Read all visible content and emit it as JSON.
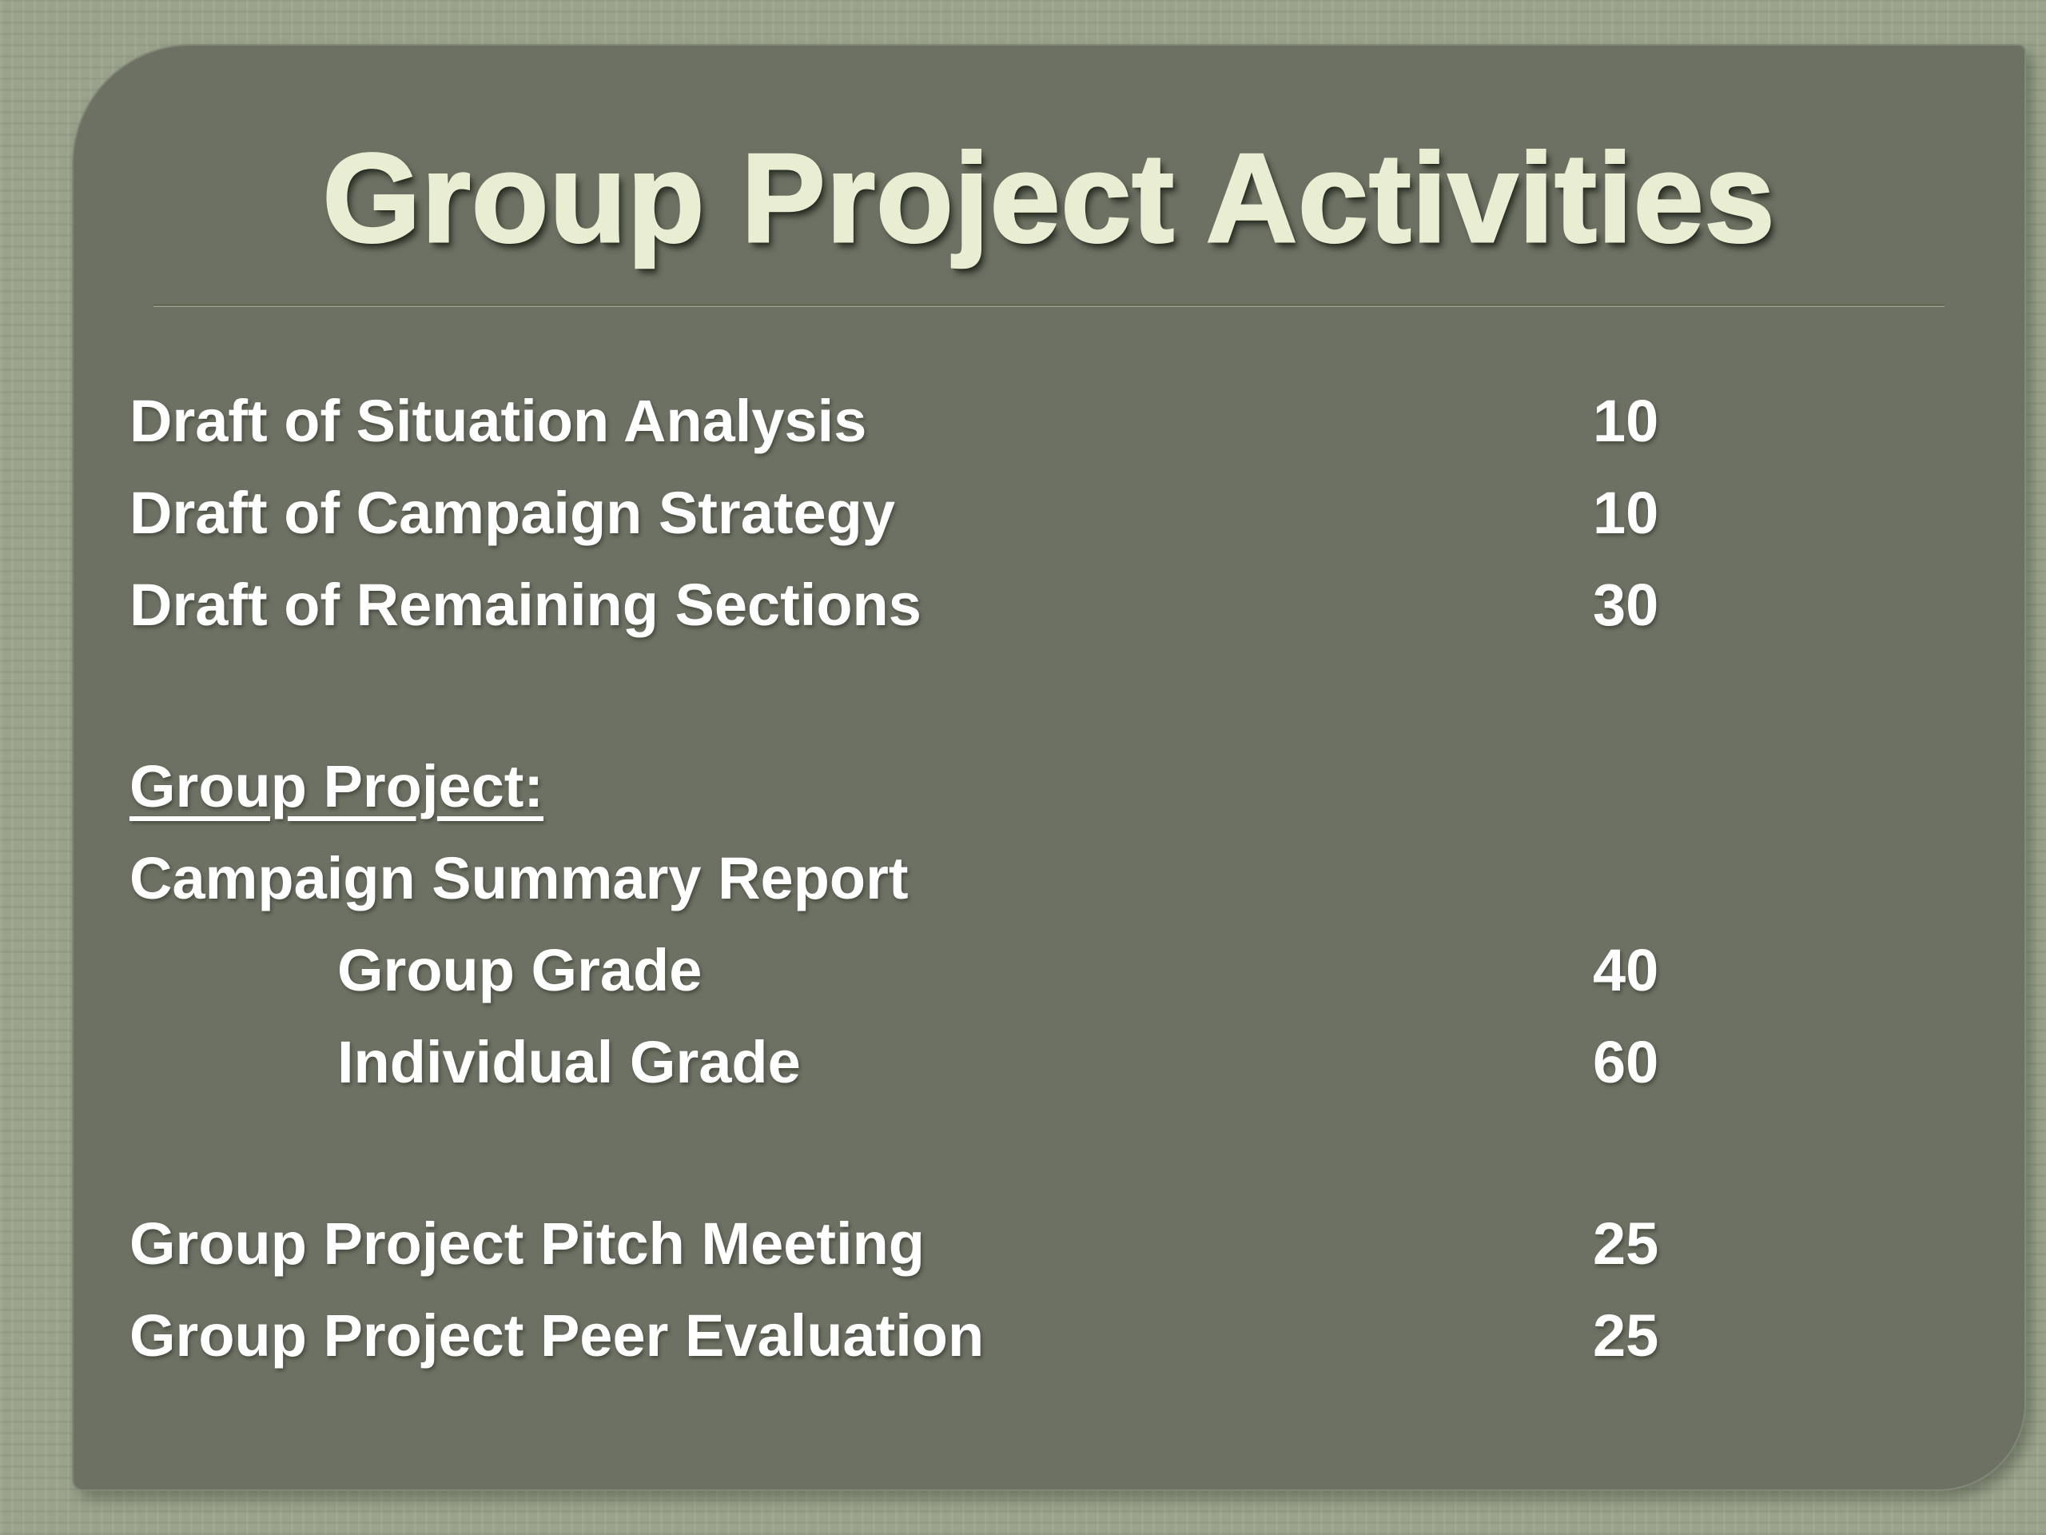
{
  "slide": {
    "title": "Group Project Activities",
    "sections": [
      {
        "rows": [
          {
            "label": "Draft of Situation Analysis",
            "value": "10"
          },
          {
            "label": "Draft of Campaign Strategy",
            "value": "10"
          },
          {
            "label": "Draft of Remaining Sections",
            "value": "30"
          }
        ]
      },
      {
        "rows": [
          {
            "label": "Group Project:",
            "value": ""
          },
          {
            "label": "Campaign Summary Report",
            "value": ""
          },
          {
            "label": "Group Grade",
            "value": "40"
          },
          {
            "label": "Individual Grade",
            "value": "60"
          }
        ]
      },
      {
        "rows": [
          {
            "label": "Group Project Pitch Meeting",
            "value": "25"
          },
          {
            "label": "Group Project Peer Evaluation",
            "value": "25"
          }
        ]
      }
    ]
  },
  "colors": {
    "outer_background": "#9aa48c",
    "panel_background": "#6c7163",
    "title_text": "#e9eed2",
    "body_text": "#ffffff",
    "divider_dark": "#4e5444",
    "divider_light": "#aab49a"
  }
}
